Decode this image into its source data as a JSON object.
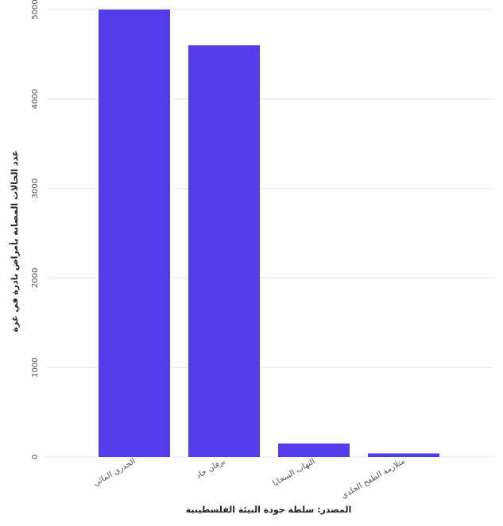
{
  "chart_data": {
    "type": "bar",
    "categories": [
      "الجدري المائي",
      "يرقان حاد",
      "التهاب السحايا",
      "متلازمة الطفح الجلدي"
    ],
    "values": [
      5000,
      4600,
      150,
      40
    ],
    "xlabel": "المصدر: سلطة جودة البيئة الفلسطينية",
    "ylabel": "عدد الحالات المصابة بأمراض نادرة في غزة",
    "ylim": [
      0,
      5000
    ],
    "yticks": [
      0,
      1000,
      2000,
      3000,
      4000,
      5000
    ],
    "grid": true,
    "bar_color": "#533de9"
  }
}
